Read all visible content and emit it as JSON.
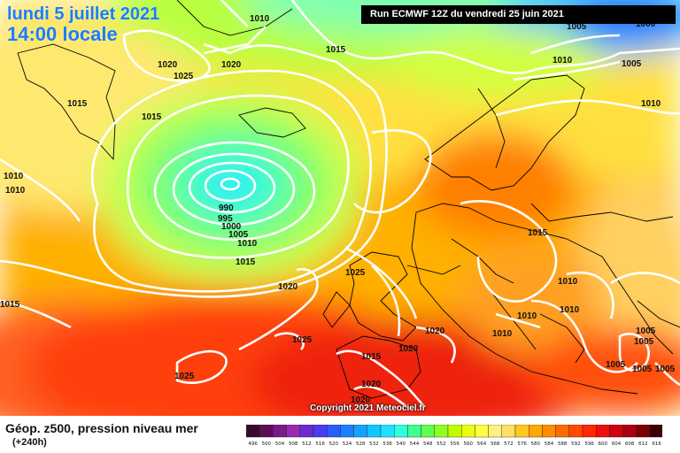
{
  "header": {
    "date": "lundi 5 juillet 2021",
    "time": "14:00 locale",
    "run": "Run ECMWF 12Z du vendredi 25 juin 2021"
  },
  "footer": {
    "title": "Géop. z500, pression niveau mer",
    "subtitle": "(+240h)",
    "copyright": "Copyright 2021 Meteociel.fr"
  },
  "isobar_labels": [
    {
      "text": "1010"
    },
    {
      "text": "1015"
    },
    {
      "text": "1020"
    },
    {
      "text": "1025"
    },
    {
      "text": "1020"
    },
    {
      "text": "1015"
    },
    {
      "text": "1015"
    },
    {
      "text": "1010"
    },
    {
      "text": "1010"
    },
    {
      "text": "990"
    },
    {
      "text": "995"
    },
    {
      "text": "1000"
    },
    {
      "text": "1005"
    },
    {
      "text": "1010"
    },
    {
      "text": "1015"
    },
    {
      "text": "1020"
    },
    {
      "text": "1015"
    },
    {
      "text": "1025"
    },
    {
      "text": "1025"
    },
    {
      "text": "1025"
    },
    {
      "text": "1020"
    },
    {
      "text": "1020"
    },
    {
      "text": "1015"
    },
    {
      "text": "1020"
    },
    {
      "text": "1020"
    },
    {
      "text": "1015"
    },
    {
      "text": "1010"
    },
    {
      "text": "1010"
    },
    {
      "text": "1010"
    },
    {
      "text": "1010"
    },
    {
      "text": "1005"
    },
    {
      "text": "1005"
    },
    {
      "text": "1005"
    },
    {
      "text": "1005"
    },
    {
      "text": "1005"
    },
    {
      "text": "1010"
    },
    {
      "text": "1005"
    },
    {
      "text": "1000"
    },
    {
      "text": "1005"
    },
    {
      "text": "1010"
    }
  ],
  "scale": {
    "labels": [
      "496",
      "500",
      "504",
      "508",
      "512",
      "516",
      "520",
      "524",
      "528",
      "532",
      "536",
      "540",
      "544",
      "548",
      "552",
      "556",
      "560",
      "564",
      "568",
      "572",
      "576",
      "580",
      "584",
      "588",
      "592",
      "596",
      "600",
      "604",
      "608",
      "612",
      "616"
    ],
    "colors": [
      "#3a0a2e",
      "#5a0f55",
      "#7a1a8a",
      "#9a2ab0",
      "#6a2ad0",
      "#4b3cf0",
      "#2a5cff",
      "#1a80ff",
      "#14a4ff",
      "#10c8ff",
      "#20e0ff",
      "#30ffe0",
      "#40ff90",
      "#60ff50",
      "#90ff20",
      "#c0ff00",
      "#e8ff10",
      "#ffff40",
      "#fff080",
      "#ffe060",
      "#ffc820",
      "#ffa800",
      "#ff8c00",
      "#ff6a00",
      "#ff4a00",
      "#ff2800",
      "#ee1010",
      "#d00010",
      "#aa0010",
      "#7a0008",
      "#3a0004"
    ]
  }
}
